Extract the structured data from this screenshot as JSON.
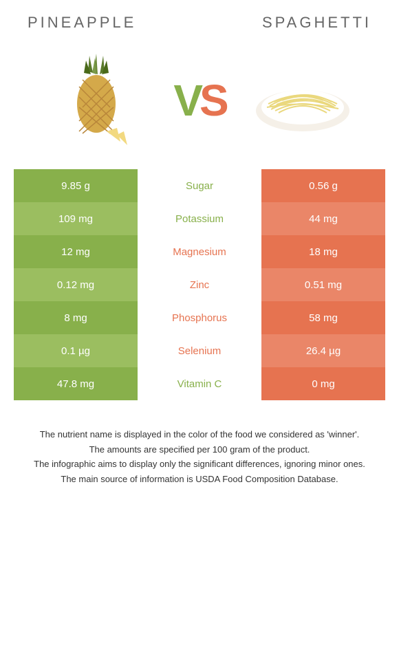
{
  "left": {
    "title": "PINEAPPLE",
    "color": "#88b04b",
    "color_alt": "#9bbe60"
  },
  "right": {
    "title": "Spaghetti",
    "color": "#e67350",
    "color_alt": "#ea8668"
  },
  "vs": {
    "v": "V",
    "s": "S"
  },
  "rows": [
    {
      "label": "Sugar",
      "left": "9.85 g",
      "right": "0.56 g",
      "winner": "left"
    },
    {
      "label": "Potassium",
      "left": "109 mg",
      "right": "44 mg",
      "winner": "left"
    },
    {
      "label": "Magnesium",
      "left": "12 mg",
      "right": "18 mg",
      "winner": "right"
    },
    {
      "label": "Zinc",
      "left": "0.12 mg",
      "right": "0.51 mg",
      "winner": "right"
    },
    {
      "label": "Phosphorus",
      "left": "8 mg",
      "right": "58 mg",
      "winner": "right"
    },
    {
      "label": "Selenium",
      "left": "0.1 µg",
      "right": "26.4 µg",
      "winner": "right"
    },
    {
      "label": "Vitamin C",
      "left": "47.8 mg",
      "right": "0 mg",
      "winner": "left"
    }
  ],
  "footnotes": [
    "The nutrient name is displayed in the color of the food we considered as 'winner'.",
    "The amounts are specified per 100 gram of the product.",
    "The infographic aims to display only the significant differences, ignoring minor ones.",
    "The main source of information is USDA Food Composition Database."
  ]
}
